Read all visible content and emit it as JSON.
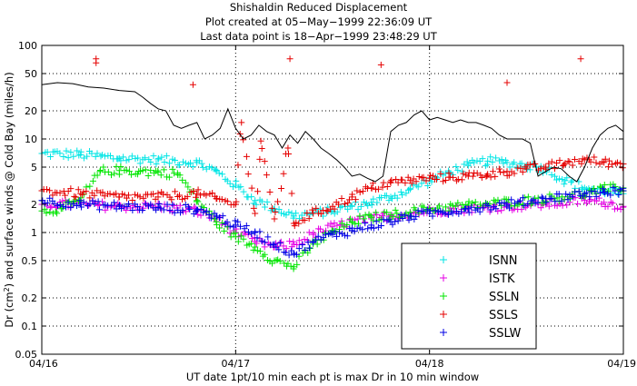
{
  "header": {
    "title": "Shishaldin Reduced Displacement",
    "line2": "Plot created at 05−May−1999 22:36:09 UT",
    "line3": "Last data point is 18−Apr−1999 23:48:29 UT"
  },
  "chart_data": {
    "type": "scatter",
    "title": "Shishaldin Reduced Displacement",
    "xlabel": "UT date 1pt/10 min each pt is max Dr in 10 min window",
    "ylabel": "Dr (cm²) and surface winds @ Cold Bay (miles/h)",
    "ylabel_pre": "Dr (cm",
    "ylabel_sup": "2",
    "ylabel_post": ") and surface winds @ Cold Bay (miles/h)",
    "x_ticks": [
      "04/16",
      "04/17",
      "04/18",
      "04/19"
    ],
    "xlim_days": [
      16,
      19
    ],
    "y_scale": "log",
    "ylim": [
      0.05,
      100
    ],
    "y_ticks": [
      0.05,
      0.1,
      0.2,
      0.5,
      1,
      2,
      5,
      10,
      20,
      50,
      100
    ],
    "y_tick_labels": [
      "0.05",
      "0.1",
      "0.2",
      "0.5",
      "1",
      "2",
      "5",
      "10",
      "20",
      "50",
      "100"
    ],
    "grid": true,
    "legend_position": "lower-right",
    "series": [
      {
        "name": "ISNN",
        "color": "#00e5e5",
        "marker": "plus",
        "points": [
          [
            16.0,
            7
          ],
          [
            16.2,
            6.8
          ],
          [
            16.4,
            6.2
          ],
          [
            16.6,
            6.0
          ],
          [
            16.8,
            5.6
          ],
          [
            16.9,
            4.5
          ],
          [
            17.0,
            3.2
          ],
          [
            17.1,
            2.2
          ],
          [
            17.2,
            1.8
          ],
          [
            17.3,
            1.5
          ],
          [
            17.4,
            1.6
          ],
          [
            17.5,
            1.7
          ],
          [
            17.6,
            1.9
          ],
          [
            17.7,
            2.1
          ],
          [
            17.8,
            2.4
          ],
          [
            17.9,
            2.9
          ],
          [
            18.0,
            3.6
          ],
          [
            18.1,
            4.4
          ],
          [
            18.2,
            5.2
          ],
          [
            18.3,
            5.8
          ],
          [
            18.4,
            5.6
          ],
          [
            18.5,
            5.2
          ],
          [
            18.6,
            4.8
          ],
          [
            18.7,
            3.6
          ],
          [
            18.8,
            3.0
          ],
          [
            18.9,
            2.8
          ],
          [
            19.0,
            2.6
          ]
        ]
      },
      {
        "name": "ISTK",
        "color": "#e500e5",
        "marker": "plus",
        "points": [
          [
            16.0,
            2.0
          ],
          [
            16.2,
            2.0
          ],
          [
            16.4,
            1.9
          ],
          [
            16.6,
            1.9
          ],
          [
            16.8,
            1.7
          ],
          [
            16.9,
            1.4
          ],
          [
            17.0,
            1.0
          ],
          [
            17.1,
            0.8
          ],
          [
            17.2,
            0.7
          ],
          [
            17.3,
            0.75
          ],
          [
            17.4,
            0.95
          ],
          [
            17.5,
            1.15
          ],
          [
            17.6,
            1.3
          ],
          [
            17.7,
            1.4
          ],
          [
            17.8,
            1.5
          ],
          [
            17.9,
            1.6
          ],
          [
            18.0,
            1.7
          ],
          [
            18.2,
            1.8
          ],
          [
            18.4,
            1.9
          ],
          [
            18.6,
            2.0
          ],
          [
            18.8,
            2.2
          ],
          [
            18.9,
            2.1
          ],
          [
            19.0,
            1.9
          ]
        ]
      },
      {
        "name": "SSLN",
        "color": "#00e500",
        "marker": "plus",
        "points": [
          [
            16.0,
            1.7
          ],
          [
            16.1,
            1.8
          ],
          [
            16.2,
            2.2
          ],
          [
            16.3,
            4.5
          ],
          [
            16.4,
            4.6
          ],
          [
            16.5,
            4.5
          ],
          [
            16.6,
            4.4
          ],
          [
            16.7,
            4.3
          ],
          [
            16.8,
            2.2
          ],
          [
            16.9,
            1.3
          ],
          [
            17.0,
            0.9
          ],
          [
            17.1,
            0.7
          ],
          [
            17.2,
            0.5
          ],
          [
            17.3,
            0.43
          ],
          [
            17.4,
            0.75
          ],
          [
            17.5,
            1.0
          ],
          [
            17.6,
            1.3
          ],
          [
            17.7,
            1.45
          ],
          [
            17.8,
            1.55
          ],
          [
            17.9,
            1.65
          ],
          [
            18.0,
            1.8
          ],
          [
            18.2,
            1.95
          ],
          [
            18.4,
            2.1
          ],
          [
            18.6,
            2.3
          ],
          [
            18.8,
            2.6
          ],
          [
            18.9,
            2.9
          ],
          [
            19.0,
            3.0
          ]
        ]
      },
      {
        "name": "SSLS",
        "color": "#e50000",
        "marker": "plus",
        "points": [
          [
            16.0,
            2.8
          ],
          [
            16.2,
            2.6
          ],
          [
            16.4,
            2.4
          ],
          [
            16.6,
            2.4
          ],
          [
            16.8,
            2.6
          ],
          [
            16.9,
            2.3
          ],
          [
            17.0,
            2.0
          ],
          [
            17.1,
            1.6
          ],
          [
            17.2,
            1.4
          ],
          [
            17.3,
            1.25
          ],
          [
            17.4,
            1.6
          ],
          [
            17.5,
            1.9
          ],
          [
            17.6,
            2.4
          ],
          [
            17.7,
            3.0
          ],
          [
            17.8,
            3.4
          ],
          [
            17.9,
            3.6
          ],
          [
            18.0,
            3.8
          ],
          [
            18.1,
            3.9
          ],
          [
            18.2,
            4.0
          ],
          [
            18.3,
            4.2
          ],
          [
            18.4,
            4.5
          ],
          [
            18.5,
            4.8
          ],
          [
            18.6,
            5.0
          ],
          [
            18.7,
            5.5
          ],
          [
            18.8,
            6.0
          ],
          [
            18.9,
            5.6
          ],
          [
            19.0,
            5.4
          ],
          [
            16.28,
            72
          ],
          [
            16.28,
            65
          ],
          [
            16.78,
            38
          ],
          [
            17.03,
            15
          ],
          [
            17.28,
            72
          ],
          [
            17.13,
            9.5
          ],
          [
            17.27,
            8
          ],
          [
            17.75,
            62
          ],
          [
            18.4,
            40
          ],
          [
            18.78,
            72
          ]
        ]
      },
      {
        "name": "SSLW",
        "color": "#0000e5",
        "marker": "plus",
        "points": [
          [
            16.0,
            2.2
          ],
          [
            16.2,
            2.0
          ],
          [
            16.4,
            1.9
          ],
          [
            16.6,
            1.85
          ],
          [
            16.8,
            1.75
          ],
          [
            16.9,
            1.5
          ],
          [
            17.0,
            1.2
          ],
          [
            17.1,
            1.0
          ],
          [
            17.2,
            0.75
          ],
          [
            17.3,
            0.6
          ],
          [
            17.4,
            0.8
          ],
          [
            17.5,
            0.95
          ],
          [
            17.6,
            1.05
          ],
          [
            17.7,
            1.2
          ],
          [
            17.8,
            1.3
          ],
          [
            17.9,
            1.5
          ],
          [
            18.0,
            1.6
          ],
          [
            18.2,
            1.8
          ],
          [
            18.4,
            2.0
          ],
          [
            18.6,
            2.3
          ],
          [
            18.8,
            2.6
          ],
          [
            18.9,
            2.7
          ],
          [
            19.0,
            2.8
          ]
        ]
      },
      {
        "name": "",
        "color": "#000000",
        "marker": "line",
        "points": [
          [
            16.0,
            38
          ],
          [
            16.08,
            40
          ],
          [
            16.16,
            39
          ],
          [
            16.24,
            36
          ],
          [
            16.32,
            35
          ],
          [
            16.4,
            33
          ],
          [
            16.48,
            32
          ],
          [
            16.52,
            28
          ],
          [
            16.56,
            24
          ],
          [
            16.6,
            21
          ],
          [
            16.64,
            20
          ],
          [
            16.68,
            14
          ],
          [
            16.72,
            13
          ],
          [
            16.76,
            14
          ],
          [
            16.8,
            15
          ],
          [
            16.84,
            10
          ],
          [
            16.88,
            11
          ],
          [
            16.92,
            13
          ],
          [
            16.96,
            21
          ],
          [
            17.0,
            13
          ],
          [
            17.04,
            10
          ],
          [
            17.08,
            11
          ],
          [
            17.12,
            14
          ],
          [
            17.16,
            12
          ],
          [
            17.2,
            11
          ],
          [
            17.24,
            8
          ],
          [
            17.28,
            11
          ],
          [
            17.32,
            9
          ],
          [
            17.36,
            12
          ],
          [
            17.4,
            10
          ],
          [
            17.44,
            8
          ],
          [
            17.48,
            7
          ],
          [
            17.52,
            6
          ],
          [
            17.56,
            5
          ],
          [
            17.6,
            4
          ],
          [
            17.64,
            4.2
          ],
          [
            17.68,
            3.8
          ],
          [
            17.72,
            3.5
          ],
          [
            17.76,
            4.0
          ],
          [
            17.8,
            12
          ],
          [
            17.84,
            14
          ],
          [
            17.88,
            15
          ],
          [
            17.92,
            18
          ],
          [
            17.96,
            20
          ],
          [
            18.0,
            16
          ],
          [
            18.04,
            17
          ],
          [
            18.08,
            16
          ],
          [
            18.12,
            15
          ],
          [
            18.16,
            16
          ],
          [
            18.2,
            15
          ],
          [
            18.24,
            15
          ],
          [
            18.28,
            14
          ],
          [
            18.32,
            13
          ],
          [
            18.36,
            11
          ],
          [
            18.4,
            10
          ],
          [
            18.44,
            10
          ],
          [
            18.48,
            10
          ],
          [
            18.52,
            9
          ],
          [
            18.56,
            4
          ],
          [
            18.6,
            4.5
          ],
          [
            18.64,
            5
          ],
          [
            18.68,
            4.8
          ],
          [
            18.72,
            4
          ],
          [
            18.76,
            3.5
          ],
          [
            18.8,
            5
          ],
          [
            18.84,
            8
          ],
          [
            18.88,
            11
          ],
          [
            18.92,
            13
          ],
          [
            18.96,
            14
          ],
          [
            19.0,
            12
          ]
        ]
      }
    ]
  }
}
